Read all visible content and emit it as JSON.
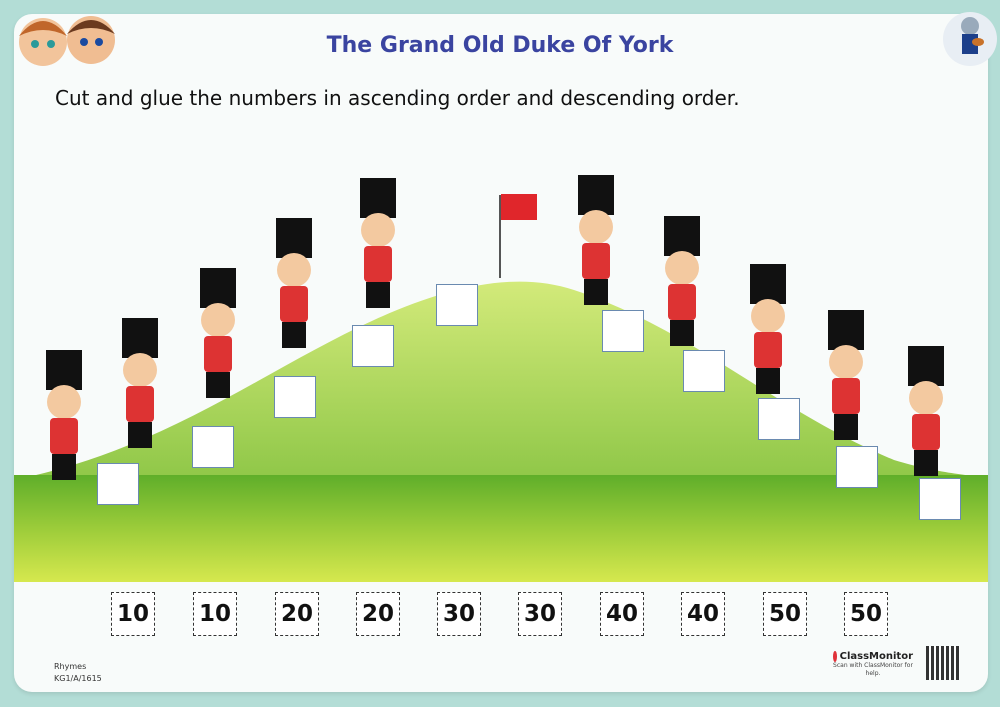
{
  "header": {
    "title": "The Grand Old Duke Of York",
    "instruction": "Cut and glue the numbers in ascending order and descending order."
  },
  "cutouts": [
    "10",
    "10",
    "20",
    "20",
    "30",
    "30",
    "40",
    "40",
    "50",
    "50"
  ],
  "footer": {
    "subject": "Rhymes",
    "code": "KG1/A/1615",
    "brand": "ClassMonitor",
    "help": "Scan with ClassMonitor for help."
  },
  "colors": {
    "background": "#b3ddd6",
    "title": "#3a44a0",
    "grass": "#8cc63f",
    "flag": "#e0262b"
  }
}
